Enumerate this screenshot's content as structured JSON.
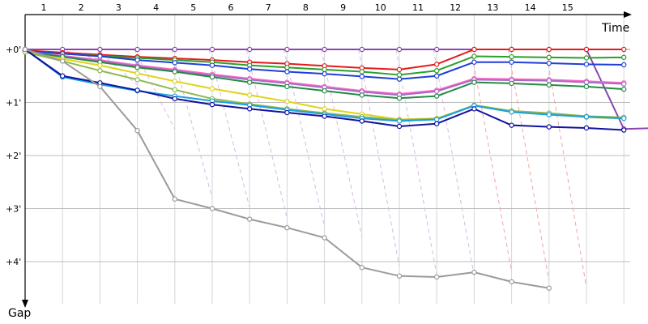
{
  "chart_data": {
    "type": "line",
    "xlabel": "Time",
    "ylabel": "Gap",
    "x_tick_labels": [
      "1",
      "2",
      "3",
      "4",
      "5",
      "6",
      "7",
      "8",
      "9",
      "10",
      "11",
      "12",
      "13",
      "14",
      "15"
    ],
    "y_tick_labels": [
      "+0'",
      "+1'",
      "+2'",
      "+3'",
      "+4'"
    ],
    "x_range": [
      0,
      16
    ],
    "y_range_minutes": [
      0,
      4.5
    ],
    "grid": true,
    "legend": "none",
    "series": [
      {
        "color": "#8e44ad",
        "values": [
          0,
          0,
          0,
          0,
          0,
          0,
          0,
          0,
          0,
          0,
          0,
          0,
          0,
          0,
          0,
          0,
          1.5,
          1.48,
          1.46
        ]
      },
      {
        "color": "#e31a1c",
        "values": [
          0.02,
          0.06,
          0.1,
          0.14,
          0.17,
          0.2,
          0.24,
          0.27,
          0.31,
          0.35,
          0.38,
          0.28,
          0.0,
          0.0,
          0.0,
          0.0,
          0.0
        ]
      },
      {
        "color": "#2ca02c",
        "values": [
          0.03,
          0.08,
          0.12,
          0.16,
          0.2,
          0.24,
          0.3,
          0.34,
          0.38,
          0.42,
          0.48,
          0.4,
          0.13,
          0.14,
          0.15,
          0.16,
          0.15
        ]
      },
      {
        "color": "#1f3fd8",
        "values": [
          0.03,
          0.08,
          0.13,
          0.2,
          0.25,
          0.3,
          0.37,
          0.42,
          0.46,
          0.51,
          0.56,
          0.5,
          0.24,
          0.24,
          0.26,
          0.28,
          0.29
        ]
      },
      {
        "color": "#ff66cc",
        "values": [
          0.04,
          0.12,
          0.2,
          0.3,
          0.38,
          0.47,
          0.55,
          0.62,
          0.7,
          0.78,
          0.84,
          0.77,
          0.55,
          0.56,
          0.57,
          0.6,
          0.63
        ]
      },
      {
        "color": "#a86cc1",
        "values": [
          0.04,
          0.13,
          0.22,
          0.32,
          0.4,
          0.49,
          0.57,
          0.64,
          0.72,
          0.8,
          0.86,
          0.79,
          0.57,
          0.58,
          0.59,
          0.62,
          0.65
        ]
      },
      {
        "color": "#238b45",
        "values": [
          0.04,
          0.14,
          0.24,
          0.34,
          0.42,
          0.52,
          0.62,
          0.7,
          0.78,
          0.86,
          0.92,
          0.88,
          0.62,
          0.64,
          0.67,
          0.7,
          0.75
        ]
      },
      {
        "color": "#e0d319",
        "values": [
          0.05,
          0.18,
          0.3,
          0.45,
          0.6,
          0.74,
          0.86,
          0.98,
          1.12,
          1.22,
          1.32,
          1.3,
          1.06,
          1.18,
          1.22,
          1.28,
          1.3
        ]
      },
      {
        "color": "#8fb94e",
        "values": [
          0.05,
          0.22,
          0.4,
          0.57,
          0.76,
          0.93,
          1.03,
          1.12,
          1.2,
          1.27,
          1.33,
          1.31,
          1.05,
          1.16,
          1.2,
          1.26,
          1.28
        ]
      },
      {
        "color": "#1a9fe0",
        "values": [
          0.0,
          0.52,
          0.66,
          0.78,
          0.88,
          0.97,
          1.05,
          1.14,
          1.22,
          1.3,
          1.35,
          1.32,
          1.06,
          1.18,
          1.23,
          1.27,
          1.3
        ]
      },
      {
        "color": "#13129e",
        "values": [
          0.0,
          0.5,
          0.63,
          0.77,
          0.93,
          1.04,
          1.12,
          1.19,
          1.26,
          1.35,
          1.45,
          1.4,
          1.12,
          1.43,
          1.46,
          1.48,
          1.52
        ]
      },
      {
        "color": "#9b9b9b",
        "values": [
          0.0,
          0.22,
          0.7,
          1.53,
          2.82,
          3.0,
          3.2,
          3.36,
          3.55,
          4.11,
          4.27,
          4.29,
          4.2,
          4.38,
          4.5
        ]
      }
    ]
  }
}
